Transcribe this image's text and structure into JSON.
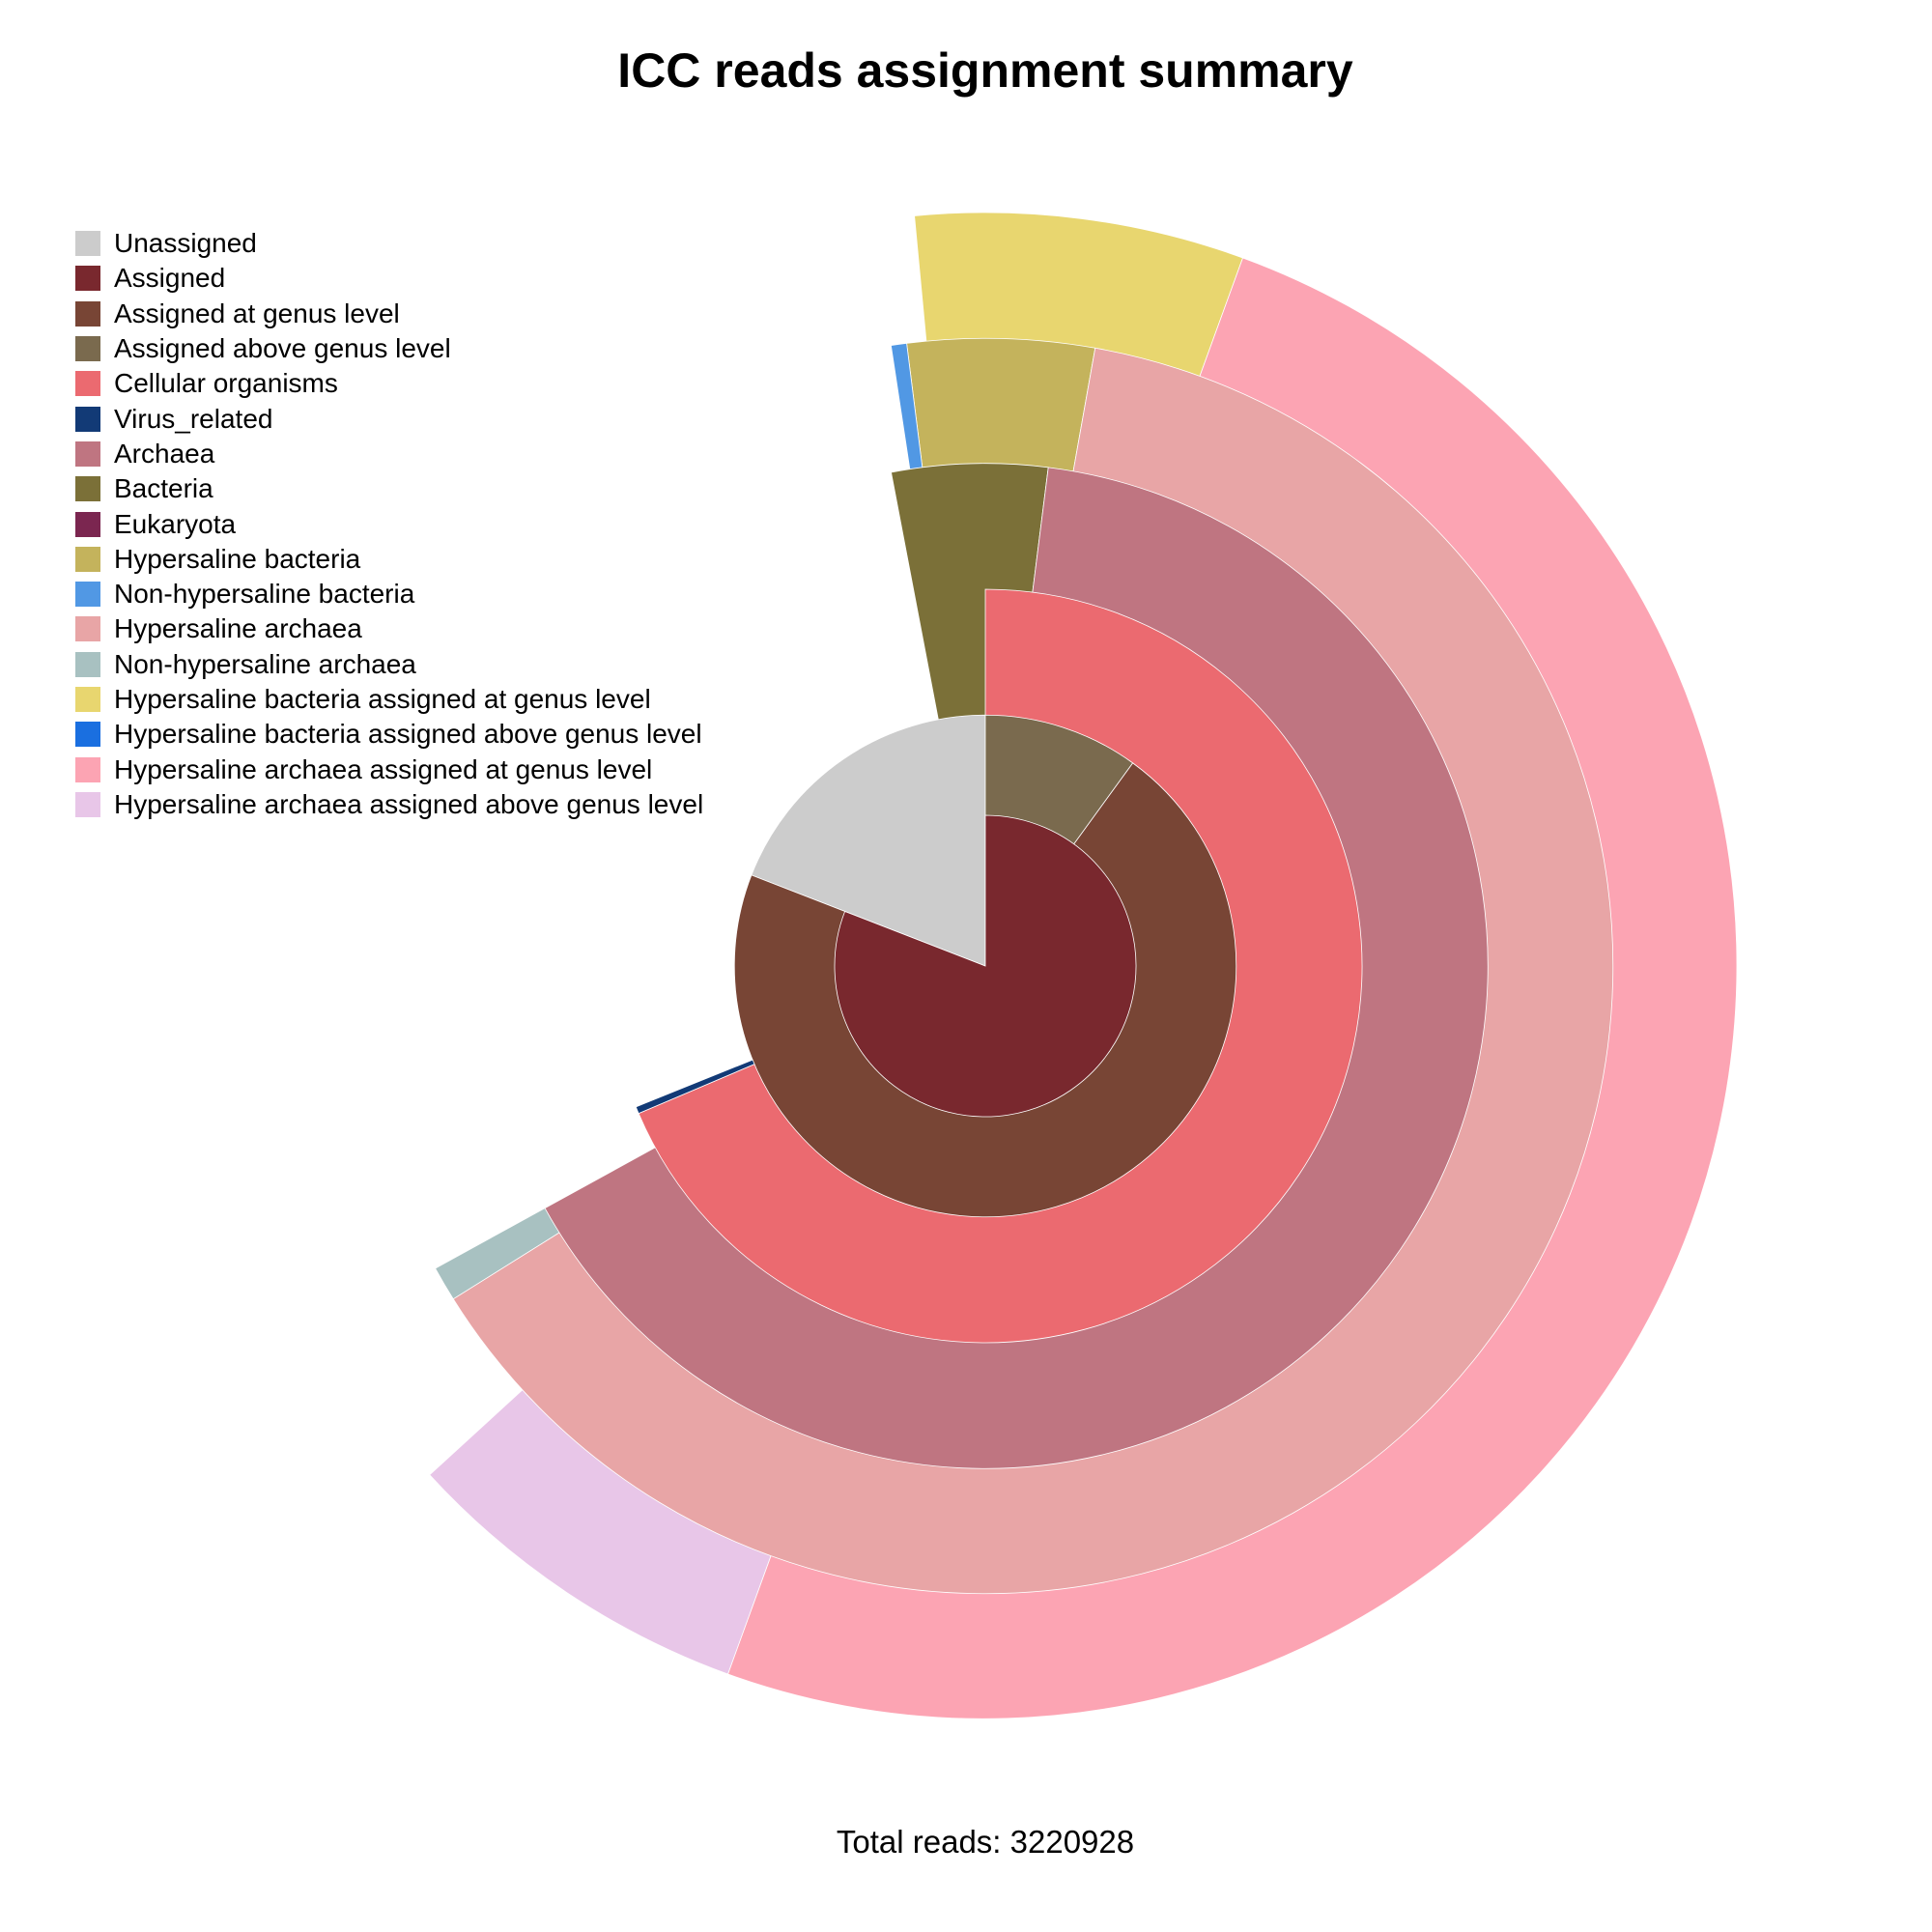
{
  "chart_data": {
    "type": "pie",
    "subtype": "multi-level sunburst (radial area proportional to reads)",
    "title": "ICC reads assignment summary",
    "footer": "Total reads: 3220928",
    "legend_position": "top-left",
    "legend": [
      {
        "label": "Unassigned",
        "color": "#cccccc"
      },
      {
        "label": "Assigned",
        "color": "#79282e"
      },
      {
        "label": "Assigned at genus level",
        "color": "#784535"
      },
      {
        "label": "Assigned above genus level",
        "color": "#7a6a4e"
      },
      {
        "label": "Cellular organisms",
        "color": "#eb6a70"
      },
      {
        "label": "Virus_related",
        "color": "#123a76"
      },
      {
        "label": "Archaea",
        "color": "#bf7581"
      },
      {
        "label": "Bacteria",
        "color": "#7b7038"
      },
      {
        "label": "Eukaryota",
        "color": "#7b2650"
      },
      {
        "label": "Hypersaline bacteria",
        "color": "#c4b35c"
      },
      {
        "label": "Non-hypersaline bacteria",
        "color": "#5198e4"
      },
      {
        "label": "Hypersaline archaea",
        "color": "#e8a5a6"
      },
      {
        "label": "Non-hypersaline archaea",
        "color": "#a8c1c1"
      },
      {
        "label": "Hypersaline bacteria assigned at genus level",
        "color": "#e8d66f"
      },
      {
        "label": "Hypersaline bacteria assigned above genus level",
        "color": "#1a6fe0"
      },
      {
        "label": "Hypersaline archaea assigned at genus level",
        "color": "#fca4b3"
      },
      {
        "label": "Hypersaline archaea assigned above genus level",
        "color": "#e8c6e8"
      }
    ],
    "segments": [
      {
        "label": "Unassigned",
        "start_frac": 0.809,
        "end_frac": 1.0,
        "radius_rel": 0.333
      },
      {
        "label": "Assigned",
        "start_frac": 0.0,
        "end_frac": 0.809,
        "radius_rel": 0.2
      },
      {
        "label": "Assigned above genus level",
        "start_frac": 0.0,
        "end_frac": 0.1,
        "radius_rel": 0.333
      },
      {
        "label": "Assigned at genus level",
        "start_frac": 0.1,
        "end_frac": 0.809,
        "radius_rel": 0.333
      },
      {
        "label": "Cellular organisms",
        "start_frac": 0.0,
        "end_frac": 0.686,
        "radius_rel": 0.5
      },
      {
        "label": "Virus_related",
        "start_frac": 0.686,
        "end_frac": 0.689,
        "radius_rel": 0.5
      },
      {
        "label": "Bacteria",
        "start_frac": 0.97,
        "end_frac": 1.02,
        "radius_rel": 0.667
      },
      {
        "label": "Archaea",
        "start_frac": 0.02,
        "end_frac": 0.67,
        "radius_rel": 0.667
      },
      {
        "label": "Hypersaline bacteria",
        "start_frac": 0.98,
        "end_frac": 1.028,
        "radius_rel": 0.833
      },
      {
        "label": "Non-hypersaline bacteria",
        "start_frac": 0.976,
        "end_frac": 0.98,
        "radius_rel": 0.833
      },
      {
        "label": "Hypersaline archaea",
        "start_frac": 0.028,
        "end_frac": 0.661,
        "radius_rel": 0.833
      },
      {
        "label": "Non-hypersaline archaea",
        "start_frac": 0.661,
        "end_frac": 0.67,
        "radius_rel": 0.833
      },
      {
        "label": "Hypersaline bacteria assigned at genus level",
        "start_frac": 0.985,
        "end_frac": 1.0555,
        "radius_rel": 1.0
      },
      {
        "label": "Hypersaline archaea assigned at genus level",
        "start_frac": 0.0555,
        "end_frac": 0.5555,
        "radius_rel": 1.0
      },
      {
        "label": "Hypersaline archaea assigned above genus level",
        "start_frac": 0.5555,
        "end_frac": 0.632,
        "radius_rel": 1.0
      }
    ]
  }
}
